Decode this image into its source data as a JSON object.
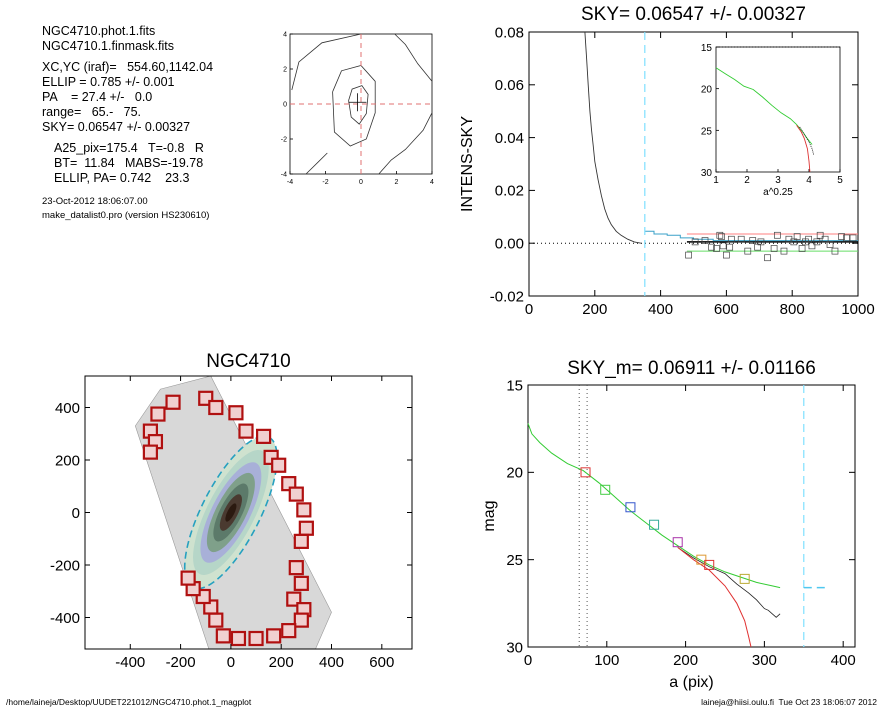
{
  "header": {
    "lines": [
      "NGC4710.phot.1.fits",
      "NGC4710.1.finmask.fits"
    ],
    "params": [
      "XC,YC (iraf)=   554.60,1142.04",
      "ELLIP = 0.785 +/- 0.001",
      "PA    = 27.4 +/-   0.0",
      "range=   65.-   75.",
      "SKY= 0.06547 +/- 0.00327"
    ],
    "params2": [
      "A25_pix=175.4   T=-0.8   R",
      "BT=  11.84   MABS=-19.78",
      "ELLIP, PA= 0.742    23.3"
    ],
    "date": "23-Oct-2012 18:06:07.00",
    "program": "make_datalist0.pro (version HS230610)"
  },
  "footer": {
    "left": "/home/laineja/Desktop/UUDET221012/NGC4710.phot.1_magplot",
    "right": "laineja@hiisi.oulu.fi  Tue Oct 23 18:06:07 2012"
  },
  "chart_data": [
    {
      "type": "line",
      "id": "contour",
      "xlim": [
        -4,
        4
      ],
      "ylim": [
        -4,
        4
      ],
      "x_ticks": [
        -4,
        -2,
        0,
        2,
        4
      ],
      "y_ticks": [
        -4,
        -2,
        0,
        2,
        4
      ],
      "contours": [
        [
          [
            -0.7,
            0.2
          ],
          [
            -0.5,
            0.85
          ],
          [
            0.05,
            1.05
          ],
          [
            0.4,
            0.55
          ],
          [
            0.3,
            -0.55
          ],
          [
            -0.1,
            -1.15
          ],
          [
            -0.55,
            -0.75
          ],
          [
            -0.7,
            0.2
          ]
        ],
        [
          [
            -1.6,
            0.7
          ],
          [
            -1.1,
            1.9
          ],
          [
            0,
            2.2
          ],
          [
            0.8,
            1.3
          ],
          [
            0.8,
            -0.5
          ],
          [
            0.3,
            -2.0
          ],
          [
            -0.6,
            -2.4
          ],
          [
            -1.5,
            -1.6
          ],
          [
            -1.6,
            0.7
          ]
        ],
        [
          [
            -3.9,
            0.8
          ],
          [
            -3.5,
            2.4
          ],
          [
            -2.2,
            3.5
          ],
          [
            0,
            4.0
          ]
        ],
        [
          [
            1.9,
            4.0
          ],
          [
            2.5,
            3.4
          ],
          [
            3.2,
            2.3
          ],
          [
            4.0,
            1.3
          ]
        ],
        [
          [
            -3.1,
            -4.0
          ],
          [
            -2.4,
            -3.3
          ],
          [
            -1.9,
            -2.8
          ]
        ],
        [
          [
            1.0,
            -4.0
          ],
          [
            1.7,
            -3.2
          ],
          [
            2.5,
            -2.6
          ],
          [
            3.5,
            -1.5
          ],
          [
            4.0,
            -0.5
          ]
        ]
      ],
      "crosshair": [
        -0.2,
        0.1
      ],
      "reference_lines": {
        "x": 0,
        "y": 0
      }
    },
    {
      "type": "scatter",
      "id": "sky",
      "title": "SKY= 0.06547 +/- 0.00327",
      "ylabel": "INTENS-SKY",
      "xlim": [
        0,
        1000
      ],
      "ylim": [
        -0.02,
        0.08
      ],
      "x_ticks": [
        0,
        200,
        400,
        600,
        800,
        1000
      ],
      "y_ticks": [
        "0.08",
        "0.06",
        "0.04",
        "0.02",
        "0.00",
        "-0.02"
      ],
      "profile": [
        [
          170,
          0.08
        ],
        [
          175,
          0.07
        ],
        [
          180,
          0.06
        ],
        [
          185,
          0.05
        ],
        [
          190,
          0.043
        ],
        [
          195,
          0.037
        ],
        [
          200,
          0.031
        ],
        [
          210,
          0.024
        ],
        [
          220,
          0.018
        ],
        [
          230,
          0.013
        ],
        [
          240,
          0.0095
        ],
        [
          250,
          0.007
        ],
        [
          265,
          0.0045
        ],
        [
          280,
          0.003
        ],
        [
          300,
          0.0015
        ],
        [
          320,
          0.0005
        ],
        [
          340,
          0.0
        ]
      ],
      "sky_marker_x": 352,
      "steps": [
        [
          352,
          0.0045
        ],
        [
          380,
          0.0035
        ],
        [
          420,
          0.003
        ],
        [
          460,
          0.002
        ],
        [
          500,
          0.0015
        ],
        [
          560,
          0.001
        ],
        [
          1000,
          0.001
        ]
      ],
      "points": [
        [
          485,
          -0.0045
        ],
        [
          505,
          0.0005
        ],
        [
          535,
          0.001
        ],
        [
          555,
          -0.0015
        ],
        [
          570,
          -0.002
        ],
        [
          580,
          0.003
        ],
        [
          585,
          0.0025
        ],
        [
          590,
          -0.001
        ],
        [
          600,
          -0.0045
        ],
        [
          610,
          -0.0015
        ],
        [
          615,
          0.0015
        ],
        [
          645,
          0.0015
        ],
        [
          665,
          -0.003
        ],
        [
          680,
          0.001
        ],
        [
          695,
          -0.0015
        ],
        [
          705,
          0.0005
        ],
        [
          725,
          -0.0055
        ],
        [
          745,
          -0.002
        ],
        [
          755,
          0.003
        ],
        [
          775,
          -0.003
        ],
        [
          790,
          0.0015
        ],
        [
          805,
          0.0005
        ],
        [
          815,
          0.0025
        ],
        [
          830,
          -0.002
        ],
        [
          840,
          0.0005
        ],
        [
          850,
          0.0015
        ],
        [
          860,
          -0.001
        ],
        [
          875,
          0.0005
        ],
        [
          885,
          0.003
        ],
        [
          900,
          0.0015
        ],
        [
          915,
          -0.0005
        ],
        [
          930,
          -0.003
        ],
        [
          950,
          0.0025
        ],
        [
          965,
          0.002
        ],
        [
          985,
          0.002
        ]
      ],
      "hlines": [
        {
          "y": 0.0,
          "color": "#000000",
          "x0": 0,
          "x1": 1000,
          "dotted": true
        },
        {
          "y": 0.0005,
          "color": "#000000",
          "x0": 480,
          "x1": 1000,
          "dotted": false
        },
        {
          "y": 0.0035,
          "color": "#ff7f7f",
          "x0": 480,
          "x1": 1000,
          "dotted": false
        },
        {
          "y": -0.003,
          "color": "#66dd66",
          "x0": 480,
          "x1": 1000,
          "dotted": false
        }
      ],
      "inset": {
        "xlabel": "a^0.25",
        "xlim": [
          1,
          5
        ],
        "ylim": [
          15,
          30
        ],
        "x_ticks": [
          1,
          2,
          3,
          4,
          5
        ],
        "y_ticks": [
          15,
          20,
          25,
          30
        ],
        "green": [
          [
            1.0,
            17.5
          ],
          [
            1.3,
            18.2
          ],
          [
            1.6,
            18.9
          ],
          [
            1.9,
            19.7
          ],
          [
            2.2,
            20.1
          ],
          [
            2.5,
            21.0
          ],
          [
            2.8,
            22.0
          ],
          [
            3.1,
            22.9
          ],
          [
            3.4,
            23.6
          ],
          [
            3.6,
            24.3
          ],
          [
            3.8,
            25.2
          ],
          [
            3.95,
            26.0
          ],
          [
            4.1,
            26.7
          ]
        ],
        "red": [
          [
            3.6,
            24.4
          ],
          [
            3.75,
            25.2
          ],
          [
            3.85,
            26.0
          ],
          [
            3.95,
            27.2
          ],
          [
            4.0,
            28.7
          ],
          [
            4.03,
            30.0
          ]
        ],
        "black": [
          [
            3.7,
            24.6
          ],
          [
            3.85,
            25.5
          ],
          [
            4.0,
            26.4
          ],
          [
            4.1,
            27.2
          ],
          [
            4.15,
            27.9
          ]
        ]
      }
    },
    {
      "type": "scatter",
      "id": "image",
      "title": "NGC4710",
      "xlim": [
        -580,
        720
      ],
      "ylim": [
        -520,
        520
      ],
      "x_ticks": [
        -400,
        -200,
        0,
        200,
        400,
        600
      ],
      "y_ticks": [
        400,
        200,
        0,
        -200,
        -400
      ],
      "ellipse": {
        "cx": 0,
        "cy": 0,
        "a": 360,
        "b": 110,
        "pa_deg": 27
      },
      "masks": [
        [
          -100,
          435
        ],
        [
          -60,
          400
        ],
        [
          20,
          380
        ],
        [
          -230,
          420
        ],
        [
          -290,
          375
        ],
        [
          -320,
          310
        ],
        [
          -300,
          270
        ],
        [
          -320,
          230
        ],
        [
          60,
          310
        ],
        [
          130,
          290
        ],
        [
          160,
          210
        ],
        [
          190,
          180
        ],
        [
          230,
          110
        ],
        [
          260,
          70
        ],
        [
          290,
          10
        ],
        [
          300,
          -60
        ],
        [
          280,
          -110
        ],
        [
          260,
          -210
        ],
        [
          280,
          -270
        ],
        [
          250,
          -330
        ],
        [
          290,
          -370
        ],
        [
          280,
          -410
        ],
        [
          230,
          -450
        ],
        [
          170,
          -470
        ],
        [
          100,
          -480
        ],
        [
          30,
          -480
        ],
        [
          -30,
          -470
        ],
        [
          -60,
          -410
        ],
        [
          -80,
          -360
        ],
        [
          -110,
          -320
        ],
        [
          -150,
          -290
        ],
        [
          -170,
          -250
        ]
      ]
    },
    {
      "type": "line",
      "id": "mag",
      "title": "SKY_m=  0.06911 +/- 0.01166",
      "xlabel": "a (pix)",
      "ylabel": "mag",
      "xlim": [
        0,
        415
      ],
      "ylim": [
        15,
        30
      ],
      "x_ticks": [
        0,
        100,
        200,
        300,
        400
      ],
      "y_ticks": [
        15,
        20,
        25,
        30
      ],
      "vlines_dotted": [
        65,
        75
      ],
      "vline_dashed": 350,
      "sky_level_dash": [
        350,
        380,
        26.6
      ],
      "green": [
        [
          0,
          17.2
        ],
        [
          5,
          17.8
        ],
        [
          15,
          18.3
        ],
        [
          30,
          18.9
        ],
        [
          50,
          19.5
        ],
        [
          70,
          19.9
        ],
        [
          90,
          20.6
        ],
        [
          110,
          21.4
        ],
        [
          130,
          22.2
        ],
        [
          150,
          22.9
        ],
        [
          170,
          23.6
        ],
        [
          190,
          24.2
        ],
        [
          210,
          24.8
        ],
        [
          230,
          25.3
        ],
        [
          250,
          25.7
        ],
        [
          270,
          26.0
        ],
        [
          290,
          26.3
        ],
        [
          310,
          26.5
        ],
        [
          320,
          26.6
        ]
      ],
      "black": [
        [
          190,
          24.3
        ],
        [
          210,
          24.9
        ],
        [
          230,
          25.4
        ],
        [
          250,
          25.8
        ],
        [
          265,
          26.4
        ],
        [
          280,
          26.9
        ],
        [
          290,
          27.3
        ],
        [
          300,
          27.8
        ],
        [
          305,
          27.9
        ],
        [
          315,
          28.3
        ],
        [
          320,
          28.1
        ]
      ],
      "red": [
        [
          190,
          24.3
        ],
        [
          210,
          25.0
        ],
        [
          230,
          25.6
        ],
        [
          250,
          26.5
        ],
        [
          265,
          27.5
        ],
        [
          275,
          28.5
        ],
        [
          280,
          29.4
        ],
        [
          283,
          30.0
        ]
      ],
      "squares": [
        {
          "x": 73,
          "y": 20.0,
          "color": "#dd3333"
        },
        {
          "x": 98,
          "y": 21.0,
          "color": "#44cc44"
        },
        {
          "x": 130,
          "y": 22.0,
          "color": "#3355cc"
        },
        {
          "x": 160,
          "y": 23.0,
          "color": "#33aa99"
        },
        {
          "x": 190,
          "y": 24.0,
          "color": "#aa33aa"
        },
        {
          "x": 220,
          "y": 25.0,
          "color": "#dd9933"
        },
        {
          "x": 230,
          "y": 25.3,
          "color": "#dd3333"
        },
        {
          "x": 275,
          "y": 26.1,
          "color": "#bbaa33"
        }
      ]
    }
  ]
}
